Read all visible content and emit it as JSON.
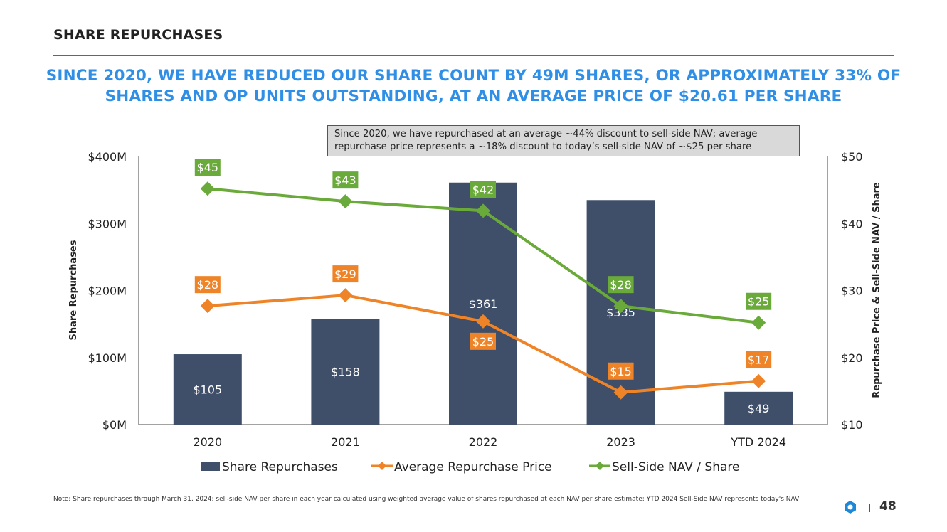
{
  "header": {
    "title": "SHARE REPURCHASES",
    "headline": "SINCE 2020, WE HAVE REDUCED OUR SHARE COUNT BY 49M SHARES, OR APPROXIMATELY 33% OF SHARES AND OP UNITS OUTSTANDING, AT AN AVERAGE PRICE OF $20.61 PER SHARE"
  },
  "callout": "Since 2020, we have repurchased at an average ~44% discount to sell-side NAV; average repurchase price represents a ~18% discount to today’s sell-side NAV of ~$25 per share",
  "footer": {
    "note": "Note: Share repurchases through March 31, 2024; sell-side NAV per share in each year calculated using weighted average value of shares repurchased at each NAV per share estimate; YTD 2024 Sell-Side NAV represents today's NAV",
    "page_number": "48"
  },
  "colors": {
    "bar": "#404f69",
    "avg": "#ee8427",
    "nav": "#6aaa3a",
    "headline": "#2f8fe6"
  },
  "chart_data": {
    "type": "bar+line",
    "categories": [
      "2020",
      "2021",
      "2022",
      "2023",
      "YTD 2024"
    ],
    "ylabel_left": "Share Repurchases",
    "ylabel_right": "Repurchase Price & Sell-Side NAV / Share",
    "ylim_left": [
      0,
      400
    ],
    "ylim_right": [
      10,
      50
    ],
    "left_ticks": [
      "$0M",
      "$100M",
      "$200M",
      "$300M",
      "$400M"
    ],
    "right_ticks": [
      "$10",
      "$20",
      "$30",
      "$40",
      "$50"
    ],
    "legend_position": "bottom",
    "series": [
      {
        "name": "Share Repurchases",
        "kind": "bar",
        "values": [
          105,
          158,
          361,
          335,
          49
        ],
        "labels": [
          "$105",
          "$158",
          "$361",
          "$335",
          "$49"
        ]
      },
      {
        "name": "Average Repurchase Price",
        "kind": "line",
        "values": [
          27.7,
          29.3,
          25.4,
          14.8,
          16.5
        ],
        "labels": [
          "$28",
          "$29",
          "$25",
          "$15",
          "$17"
        ]
      },
      {
        "name": "Sell-Side NAV / Share",
        "kind": "line",
        "values": [
          45.2,
          43.3,
          41.9,
          27.7,
          25.2
        ],
        "labels": [
          "$45",
          "$43",
          "$42",
          "$28",
          "$25"
        ]
      }
    ]
  }
}
